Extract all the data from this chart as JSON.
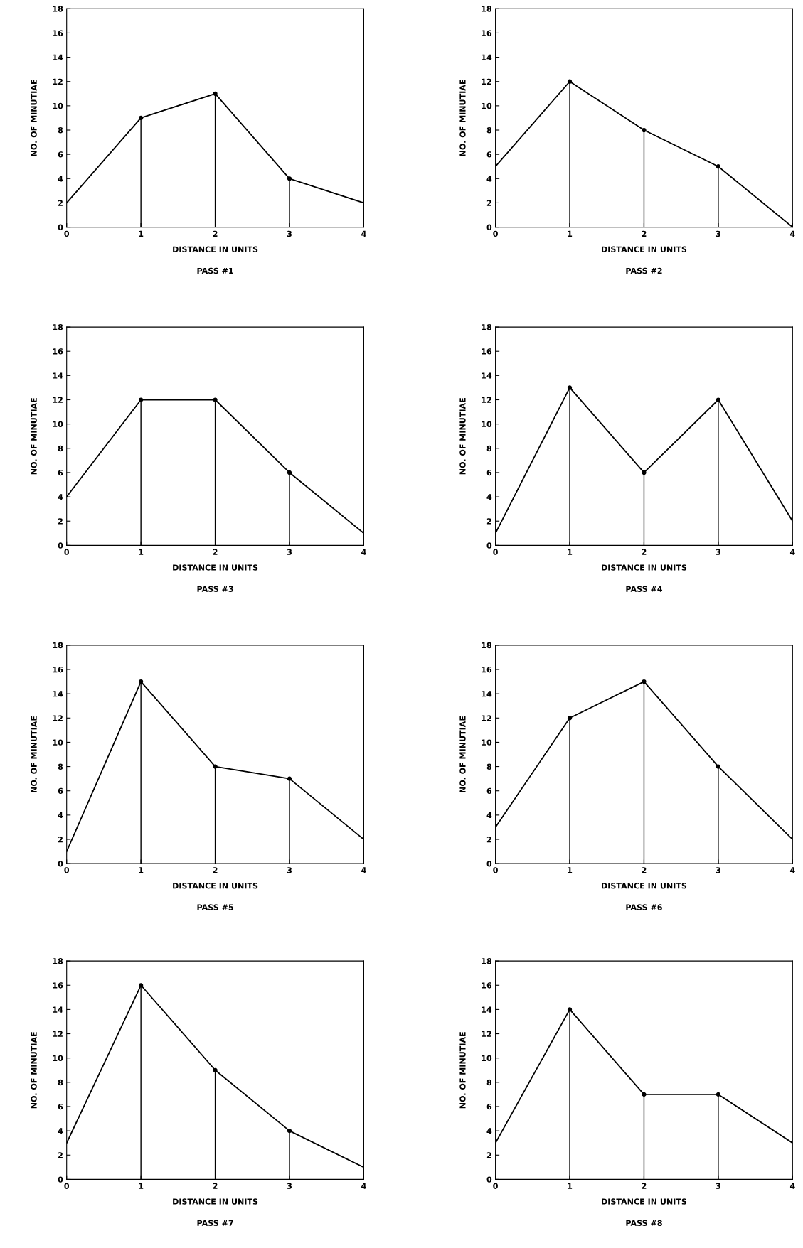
{
  "chart_data": [
    {
      "type": "line",
      "title": "PASS #1",
      "xlabel": "DISTANCE IN UNITS",
      "ylabel": "NO. OF MINUTIAE",
      "x": [
        0,
        1,
        2,
        3,
        4
      ],
      "series": [
        {
          "color": "#000000",
          "values": [
            2,
            9,
            11,
            4,
            2
          ]
        },
        {
          "type": "lollipop",
          "marker": "circle",
          "color": "#000000",
          "x": [
            1,
            2,
            3
          ],
          "values": [
            9,
            11,
            4
          ]
        }
      ],
      "xlim": [
        0,
        4
      ],
      "xticks": [
        0,
        1,
        2,
        3,
        4
      ],
      "ylim": [
        0,
        18
      ],
      "yticks": [
        0,
        2,
        4,
        6,
        8,
        10,
        12,
        14,
        16,
        18
      ],
      "grid": false,
      "legend": false
    },
    {
      "type": "line",
      "title": "PASS #2",
      "xlabel": "DISTANCE IN UNITS",
      "ylabel": "NO. OF MINUTIAE",
      "x": [
        0,
        1,
        2,
        3,
        4
      ],
      "series": [
        {
          "color": "#000000",
          "values": [
            5,
            12,
            8,
            5,
            0
          ]
        },
        {
          "type": "lollipop",
          "marker": "circle",
          "color": "#000000",
          "x": [
            1,
            2,
            3
          ],
          "values": [
            12,
            8,
            5
          ]
        }
      ],
      "xlim": [
        0,
        4
      ],
      "xticks": [
        0,
        1,
        2,
        3,
        4
      ],
      "ylim": [
        0,
        18
      ],
      "yticks": [
        0,
        2,
        4,
        6,
        8,
        10,
        12,
        14,
        16,
        18
      ],
      "grid": false,
      "legend": false
    },
    {
      "type": "line",
      "title": "PASS #3",
      "xlabel": "DISTANCE IN UNITS",
      "ylabel": "NO. OF MINUTIAE",
      "x": [
        0,
        1,
        2,
        3,
        4
      ],
      "series": [
        {
          "color": "#000000",
          "values": [
            4,
            12,
            12,
            6,
            1
          ]
        },
        {
          "type": "lollipop",
          "marker": "circle",
          "color": "#000000",
          "x": [
            1,
            2,
            3
          ],
          "values": [
            12,
            12,
            6
          ]
        }
      ],
      "xlim": [
        0,
        4
      ],
      "xticks": [
        0,
        1,
        2,
        3,
        4
      ],
      "ylim": [
        0,
        18
      ],
      "yticks": [
        0,
        2,
        4,
        6,
        8,
        10,
        12,
        14,
        16,
        18
      ],
      "grid": false,
      "legend": false
    },
    {
      "type": "line",
      "title": "PASS #4",
      "xlabel": "DISTANCE IN UNITS",
      "ylabel": "NO. OF MINUTIAE",
      "x": [
        0,
        1,
        2,
        3,
        4
      ],
      "series": [
        {
          "color": "#000000",
          "values": [
            1,
            13,
            6,
            12,
            2
          ]
        },
        {
          "type": "lollipop",
          "marker": "circle",
          "color": "#000000",
          "x": [
            1,
            2,
            3
          ],
          "values": [
            13,
            6,
            12
          ]
        }
      ],
      "xlim": [
        0,
        4
      ],
      "xticks": [
        0,
        1,
        2,
        3,
        4
      ],
      "ylim": [
        0,
        18
      ],
      "yticks": [
        0,
        2,
        4,
        6,
        8,
        10,
        12,
        14,
        16,
        18
      ],
      "legend": false
    },
    {
      "type": "line",
      "title": "PASS #5",
      "xlabel": "DISTANCE IN UNITS",
      "ylabel": "NO. OF MINUTIAE",
      "x": [
        0,
        1,
        2,
        3,
        4
      ],
      "series": [
        {
          "color": "#000000",
          "values": [
            1,
            15,
            8,
            7,
            2
          ]
        },
        {
          "type": "lollipop",
          "marker": "circle",
          "color": "#000000",
          "x": [
            1,
            2,
            3
          ],
          "values": [
            15,
            8,
            7
          ]
        }
      ],
      "xlim": [
        0,
        4
      ],
      "xticks": [
        0,
        1,
        2,
        3,
        4
      ],
      "ylim": [
        0,
        18
      ],
      "yticks": [
        0,
        2,
        4,
        6,
        8,
        10,
        12,
        14,
        16,
        18
      ],
      "legend": false
    },
    {
      "type": "line",
      "title": "PASS #6",
      "xlabel": "DISTANCE IN UNITS",
      "ylabel": "NO. OF MINUTIAE",
      "x": [
        0,
        1,
        2,
        3,
        4
      ],
      "series": [
        {
          "color": "#000000",
          "values": [
            3,
            12,
            15,
            8,
            2
          ]
        },
        {
          "type": "lollipop",
          "marker": "circle",
          "color": "#000000",
          "x": [
            1,
            2,
            3
          ],
          "values": [
            12,
            15,
            8
          ]
        }
      ],
      "xlim": [
        0,
        4
      ],
      "xticks": [
        0,
        1,
        2,
        3,
        4
      ],
      "ylim": [
        0,
        18
      ],
      "yticks": [
        0,
        2,
        4,
        6,
        8,
        10,
        12,
        14,
        16,
        18
      ],
      "legend": false
    },
    {
      "type": "line",
      "title": "PASS #7",
      "xlabel": "DISTANCE IN UNITS",
      "ylabel": "NO. OF MINUTIAE",
      "x": [
        0,
        1,
        2,
        3,
        4
      ],
      "series": [
        {
          "color": "#000000",
          "values": [
            3,
            16,
            9,
            4,
            1
          ]
        },
        {
          "type": "lollipop",
          "marker": "circle",
          "color": "#000000",
          "x": [
            1,
            2,
            3
          ],
          "values": [
            16,
            9,
            4
          ]
        }
      ],
      "xlim": [
        0,
        4
      ],
      "xticks": [
        0,
        1,
        2,
        3,
        4
      ],
      "ylim": [
        0,
        18
      ],
      "yticks": [
        0,
        2,
        4,
        6,
        8,
        10,
        12,
        14,
        16,
        18
      ],
      "legend": false
    },
    {
      "type": "line",
      "title": "PASS #8",
      "xlabel": "DISTANCE IN UNITS",
      "ylabel": "NO. OF MINUTIAE",
      "x": [
        0,
        1,
        2,
        3,
        4
      ],
      "series": [
        {
          "color": "#000000",
          "values": [
            3,
            14,
            7,
            7,
            3
          ]
        },
        {
          "type": "lollipop",
          "marker": "circle",
          "color": "#000000",
          "x": [
            1,
            2,
            3
          ],
          "values": [
            14,
            7,
            7
          ]
        }
      ],
      "xlim": [
        0,
        4
      ],
      "xticks": [
        0,
        1,
        2,
        3,
        4
      ],
      "ylim": [
        0,
        18
      ],
      "yticks": [
        0,
        2,
        4,
        6,
        8,
        10,
        12,
        14,
        16,
        18
      ],
      "legend": false
    }
  ]
}
